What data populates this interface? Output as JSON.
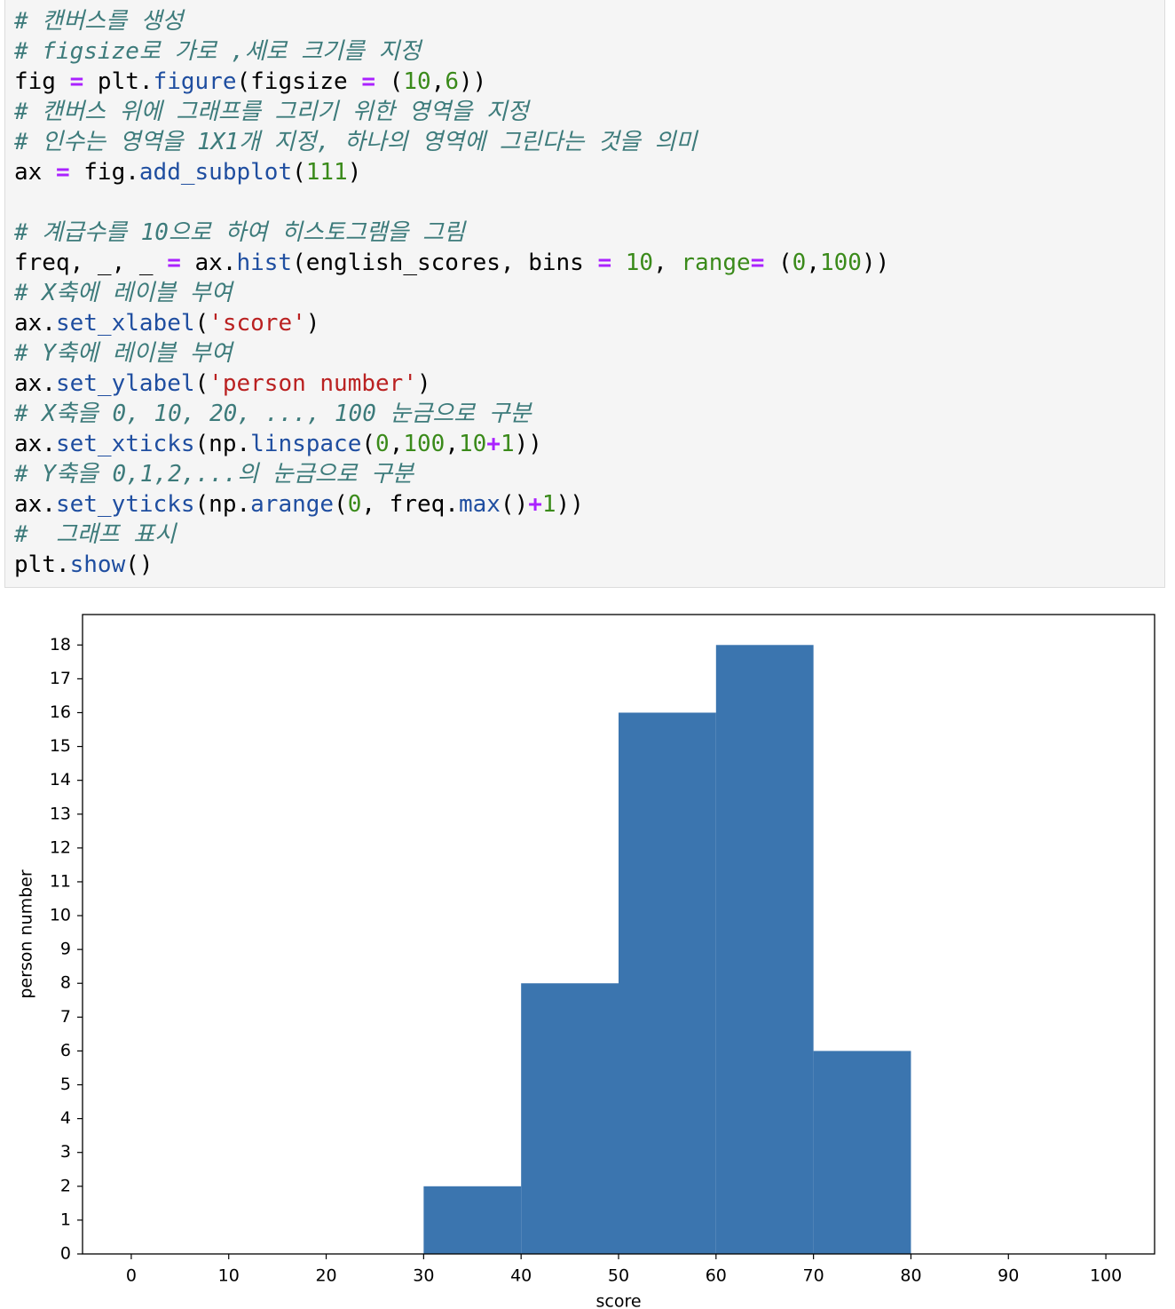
{
  "code": {
    "lines": [
      [
        {
          "text": "# 캔버스를 생성",
          "color": "#3d7b7b",
          "italic": true
        }
      ],
      [
        {
          "text": "# figsize로 가로 ,세로 크기를 지정",
          "color": "#3d7b7b",
          "italic": true
        }
      ],
      [
        {
          "text": "fig ",
          "color": "#000000"
        },
        {
          "text": "=",
          "color": "#aa22ff"
        },
        {
          "text": " plt.",
          "color": "#000000"
        },
        {
          "text": "figure",
          "color": "#1f4ea0"
        },
        {
          "text": "(figsize ",
          "color": "#000000"
        },
        {
          "text": "=",
          "color": "#aa22ff"
        },
        {
          "text": " (",
          "color": "#000000"
        },
        {
          "text": "10",
          "color": "#3a8a1a"
        },
        {
          "text": ",",
          "color": "#000000"
        },
        {
          "text": "6",
          "color": "#3a8a1a"
        },
        {
          "text": "))",
          "color": "#000000"
        }
      ],
      [
        {
          "text": "# 캔버스 위에 그래프를 그리기 위한 영역을 지정",
          "color": "#3d7b7b",
          "italic": true
        }
      ],
      [
        {
          "text": "# 인수는 영역을 1X1개 지정, 하나의 영역에 그린다는 것을 의미",
          "color": "#3d7b7b",
          "italic": true
        }
      ],
      [
        {
          "text": "ax ",
          "color": "#000000"
        },
        {
          "text": "=",
          "color": "#aa22ff"
        },
        {
          "text": " fig.",
          "color": "#000000"
        },
        {
          "text": "add_subplot",
          "color": "#1f4ea0"
        },
        {
          "text": "(",
          "color": "#000000"
        },
        {
          "text": "111",
          "color": "#3a8a1a"
        },
        {
          "text": ")",
          "color": "#000000"
        }
      ],
      [],
      [
        {
          "text": "# 계급수를 10으로 하여 히스토그램을 그림",
          "color": "#3d7b7b",
          "italic": true
        }
      ],
      [
        {
          "text": "freq, _, _ ",
          "color": "#000000"
        },
        {
          "text": "=",
          "color": "#aa22ff"
        },
        {
          "text": " ax.",
          "color": "#000000"
        },
        {
          "text": "hist",
          "color": "#1f4ea0"
        },
        {
          "text": "(english_scores, bins ",
          "color": "#000000"
        },
        {
          "text": "=",
          "color": "#aa22ff"
        },
        {
          "text": " ",
          "color": "#000000"
        },
        {
          "text": "10",
          "color": "#3a8a1a"
        },
        {
          "text": ", ",
          "color": "#000000"
        },
        {
          "text": "range",
          "color": "#3a8a1a"
        },
        {
          "text": "=",
          "color": "#aa22ff"
        },
        {
          "text": " (",
          "color": "#000000"
        },
        {
          "text": "0",
          "color": "#3a8a1a"
        },
        {
          "text": ",",
          "color": "#000000"
        },
        {
          "text": "100",
          "color": "#3a8a1a"
        },
        {
          "text": "))",
          "color": "#000000"
        }
      ],
      [
        {
          "text": "# X축에 레이블 부여",
          "color": "#3d7b7b",
          "italic": true
        }
      ],
      [
        {
          "text": "ax.",
          "color": "#000000"
        },
        {
          "text": "set_xlabel",
          "color": "#1f4ea0"
        },
        {
          "text": "(",
          "color": "#000000"
        },
        {
          "text": "'score'",
          "color": "#ba2121"
        },
        {
          "text": ")",
          "color": "#000000"
        }
      ],
      [
        {
          "text": "# Y축에 레이블 부여",
          "color": "#3d7b7b",
          "italic": true
        }
      ],
      [
        {
          "text": "ax.",
          "color": "#000000"
        },
        {
          "text": "set_ylabel",
          "color": "#1f4ea0"
        },
        {
          "text": "(",
          "color": "#000000"
        },
        {
          "text": "'person number'",
          "color": "#ba2121"
        },
        {
          "text": ")",
          "color": "#000000"
        }
      ],
      [
        {
          "text": "# X축을 0, 10, 20, ..., 100 눈금으로 구분",
          "color": "#3d7b7b",
          "italic": true
        }
      ],
      [
        {
          "text": "ax.",
          "color": "#000000"
        },
        {
          "text": "set_xticks",
          "color": "#1f4ea0"
        },
        {
          "text": "(np.",
          "color": "#000000"
        },
        {
          "text": "linspace",
          "color": "#1f4ea0"
        },
        {
          "text": "(",
          "color": "#000000"
        },
        {
          "text": "0",
          "color": "#3a8a1a"
        },
        {
          "text": ",",
          "color": "#000000"
        },
        {
          "text": "100",
          "color": "#3a8a1a"
        },
        {
          "text": ",",
          "color": "#000000"
        },
        {
          "text": "10",
          "color": "#3a8a1a"
        },
        {
          "text": "+",
          "color": "#aa22ff"
        },
        {
          "text": "1",
          "color": "#3a8a1a"
        },
        {
          "text": "))",
          "color": "#000000"
        }
      ],
      [
        {
          "text": "# Y축을 0,1,2,...의 눈금으로 구분",
          "color": "#3d7b7b",
          "italic": true
        }
      ],
      [
        {
          "text": "ax.",
          "color": "#000000"
        },
        {
          "text": "set_yticks",
          "color": "#1f4ea0"
        },
        {
          "text": "(np.",
          "color": "#000000"
        },
        {
          "text": "arange",
          "color": "#1f4ea0"
        },
        {
          "text": "(",
          "color": "#000000"
        },
        {
          "text": "0",
          "color": "#3a8a1a"
        },
        {
          "text": ", freq.",
          "color": "#000000"
        },
        {
          "text": "max",
          "color": "#1f4ea0"
        },
        {
          "text": "()",
          "color": "#000000"
        },
        {
          "text": "+",
          "color": "#aa22ff"
        },
        {
          "text": "1",
          "color": "#3a8a1a"
        },
        {
          "text": "))",
          "color": "#000000"
        }
      ],
      [
        {
          "text": "#  그래프 표시",
          "color": "#3d7b7b",
          "italic": true
        }
      ],
      [
        {
          "text": "plt.",
          "color": "#000000"
        },
        {
          "text": "show",
          "color": "#1f4ea0"
        },
        {
          "text": "()",
          "color": "#000000"
        }
      ]
    ]
  },
  "chart_data": {
    "type": "histogram",
    "xlabel": "score",
    "ylabel": "person number",
    "bins": [
      0,
      10,
      20,
      30,
      40,
      50,
      60,
      70,
      80,
      90,
      100
    ],
    "values": [
      0,
      0,
      0,
      2,
      8,
      16,
      18,
      6,
      0,
      0
    ],
    "color": "#3b75af",
    "xlim": [
      -5,
      105
    ],
    "ylim": [
      0,
      18.9
    ],
    "xticks": [
      0,
      10,
      20,
      30,
      40,
      50,
      60,
      70,
      80,
      90,
      100
    ],
    "yticks": [
      0,
      1,
      2,
      3,
      4,
      5,
      6,
      7,
      8,
      9,
      10,
      11,
      12,
      13,
      14,
      15,
      16,
      17,
      18
    ],
    "grid": false
  }
}
